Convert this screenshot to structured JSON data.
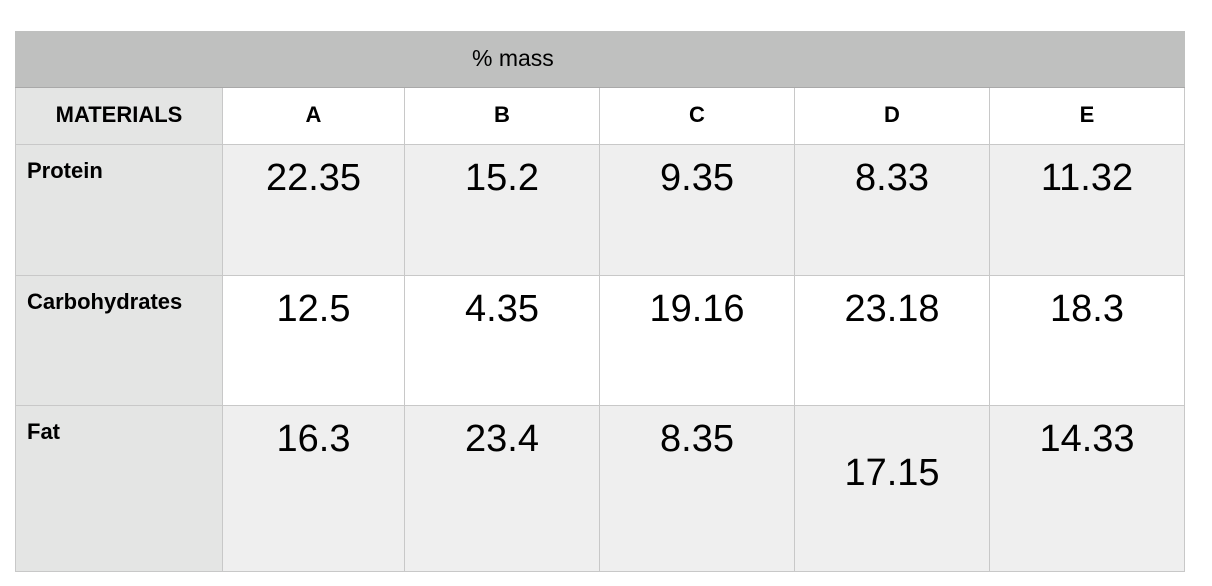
{
  "table": {
    "title": "% mass",
    "header": [
      "MATERIALS",
      "A",
      "B",
      "C",
      "D",
      "E"
    ],
    "rows": [
      [
        "Protein",
        "22.35",
        "15.2",
        "9.35",
        "8.33",
        "11.32"
      ],
      [
        "Carbohydrates",
        "12.5",
        "4.35",
        "19.16",
        "23.18",
        "18.3"
      ],
      [
        "Fat",
        "16.3",
        "23.4",
        "8.35",
        "17.15",
        "14.33"
      ]
    ]
  }
}
